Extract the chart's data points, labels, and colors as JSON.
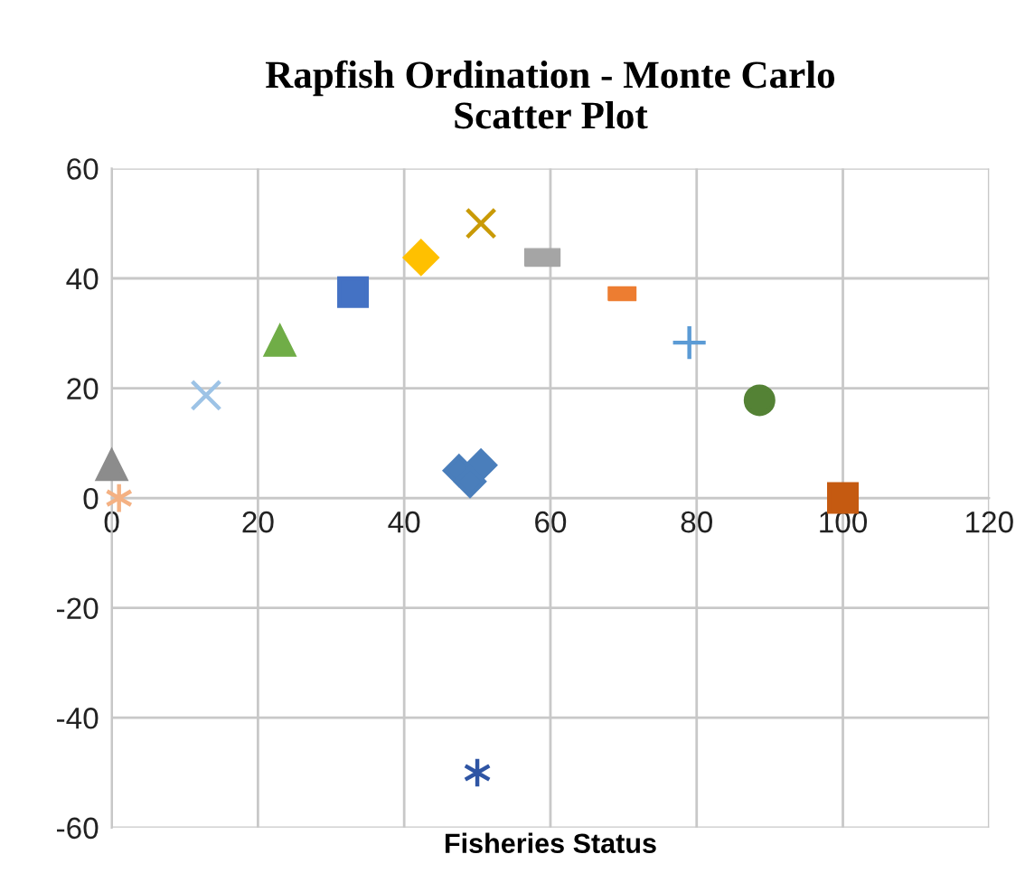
{
  "chart_data": {
    "type": "scatter",
    "title": "Rapfish Ordination - Monte Carlo\nScatter Plot",
    "xlabel": "Fisheries Status",
    "xlim": [
      0,
      120
    ],
    "ylim": [
      -60,
      60
    ],
    "xticks": [
      0,
      20,
      40,
      60,
      80,
      100,
      120
    ],
    "yticks": [
      -60,
      -40,
      -20,
      0,
      20,
      40,
      60
    ],
    "grid": true,
    "series": [
      {
        "x": [
          0
        ],
        "values": [
          6
        ],
        "color": "#8c8c8c",
        "marker": "triangle"
      },
      {
        "x": [
          1
        ],
        "values": [
          0
        ],
        "color": "#f4b183",
        "marker": "cross"
      },
      {
        "x": [
          12.9
        ],
        "values": [
          18.7
        ],
        "color": "#9dc3e6",
        "marker": "x"
      },
      {
        "x": [
          23
        ],
        "values": [
          28.6
        ],
        "color": "#70ad47",
        "marker": "triangle"
      },
      {
        "x": [
          33
        ],
        "values": [
          37.5
        ],
        "color": "#4472c4",
        "marker": "square"
      },
      {
        "x": [
          42.3
        ],
        "values": [
          43.8
        ],
        "color": "#ffc000",
        "marker": "diamond"
      },
      {
        "x": [
          50.5
        ],
        "values": [
          50
        ],
        "color": "#c99a06",
        "marker": "x"
      },
      {
        "x": [
          58.9
        ],
        "values": [
          43.8
        ],
        "color": "#a5a5a5",
        "marker": "square"
      },
      {
        "x": [
          69.8
        ],
        "values": [
          37.2
        ],
        "color": "#ed7d31",
        "marker": "square"
      },
      {
        "x": [
          79
        ],
        "values": [
          28.3
        ],
        "color": "#5b9bd5",
        "marker": "plus"
      },
      {
        "x": [
          88.6
        ],
        "values": [
          17.8
        ],
        "color": "#548235",
        "marker": "circle"
      },
      {
        "x": [
          100
        ],
        "values": [
          0
        ],
        "color": "#c55a11",
        "marker": "square"
      },
      {
        "x": [
          47.5,
          50.5,
          49
        ],
        "values": [
          5,
          6,
          3
        ],
        "color": "#4a7ebb",
        "marker": "diamond"
      },
      {
        "x": [
          50
        ],
        "values": [
          -50
        ],
        "color": "#2f55a4",
        "marker": "cross"
      }
    ]
  }
}
